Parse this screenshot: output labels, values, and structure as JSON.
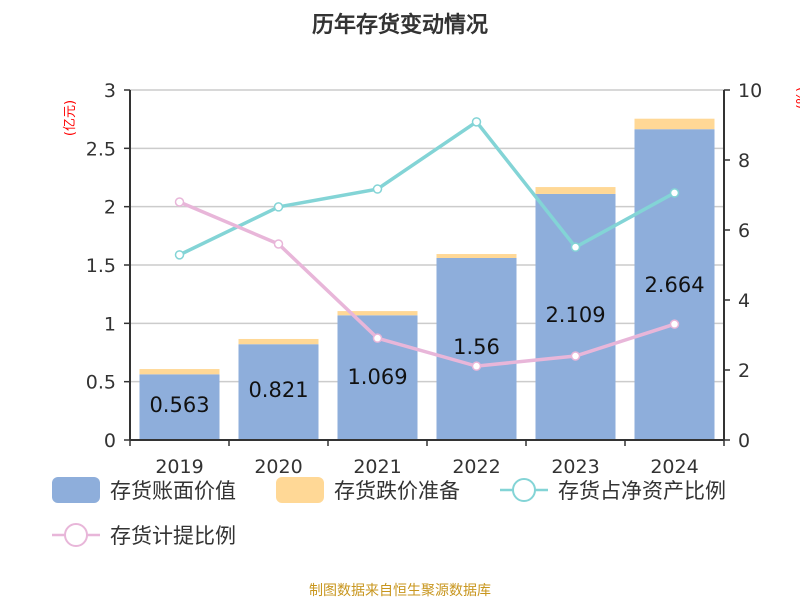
{
  "chart_data": {
    "type": "bar",
    "title": "历年存货变动情况",
    "categories": [
      "2019",
      "2020",
      "2021",
      "2022",
      "2023",
      "2024"
    ],
    "y_left": {
      "label": "(亿元)",
      "range": [
        0,
        3
      ],
      "ticks": [
        "0",
        "0.5",
        "1",
        "1.5",
        "2",
        "2.5",
        "3"
      ],
      "label_color": "#ff0000"
    },
    "y_right": {
      "label": "(%)",
      "range": [
        0,
        10
      ],
      "ticks": [
        "0",
        "2",
        "4",
        "6",
        "8",
        "10"
      ],
      "label_color": "#ff0000"
    },
    "grid": true,
    "legend_position": "bottom",
    "series": [
      {
        "name": "存货账面价值",
        "kind": "bar",
        "stack": "a",
        "axis": "left",
        "color": "#8eaedb",
        "values": [
          0.563,
          0.821,
          1.069,
          1.56,
          2.109,
          2.664
        ],
        "labels": [
          "0.563",
          "0.821",
          "1.069",
          "1.56",
          "2.109",
          "2.664"
        ]
      },
      {
        "name": "存货跌价准备",
        "kind": "bar",
        "stack": "a",
        "axis": "left",
        "color": "#ffd896",
        "values": [
          0.045,
          0.045,
          0.036,
          0.034,
          0.059,
          0.09
        ]
      },
      {
        "name": "存货占净资产比例",
        "kind": "line",
        "axis": "right",
        "color": "#83d4d6",
        "values": [
          5.29,
          6.66,
          7.17,
          9.09,
          5.51,
          7.06
        ]
      },
      {
        "name": "存货计提比例",
        "kind": "line",
        "axis": "right",
        "color": "#e8b6d9",
        "values": [
          6.8,
          5.6,
          2.91,
          2.11,
          2.4,
          3.31
        ]
      }
    ],
    "source": "制图数据来自恒生聚源数据库"
  }
}
